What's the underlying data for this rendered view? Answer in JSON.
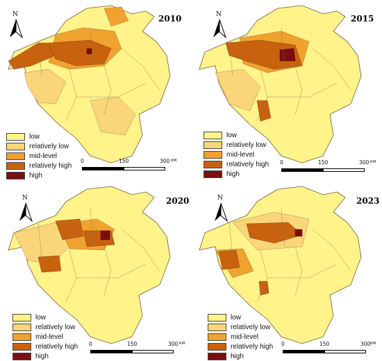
{
  "legend": {
    "items": [
      {
        "label": "low",
        "color": "#FFF38A"
      },
      {
        "label": "relatively low",
        "color": "#FBD57A"
      },
      {
        "label": "mid-level",
        "color": "#F0A22E"
      },
      {
        "label": "relatively high",
        "color": "#C8620F"
      },
      {
        "label": "high",
        "color": "#7B0E0E"
      }
    ]
  },
  "north_label": "N",
  "scale": {
    "ticks": [
      "0",
      "150",
      "300"
    ],
    "unit": "KM"
  },
  "panels": [
    {
      "year": "2010"
    },
    {
      "year": "2015"
    },
    {
      "year": "2020"
    },
    {
      "year": "2023"
    }
  ]
}
